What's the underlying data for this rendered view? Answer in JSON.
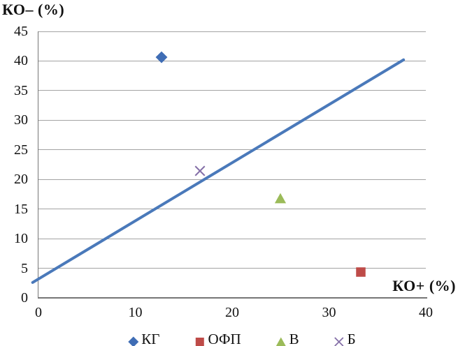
{
  "chart_data": {
    "type": "scatter",
    "title": "",
    "ylabel": "КО– (%)",
    "xlabel": "КО+ (%)",
    "xlim": [
      0,
      40
    ],
    "ylim": [
      0,
      45
    ],
    "xticks": [
      0,
      10,
      20,
      30,
      40
    ],
    "yticks": [
      0,
      5,
      10,
      15,
      20,
      25,
      30,
      35,
      40,
      45
    ],
    "grid": "horizontal-only",
    "legend_position": "bottom-center",
    "series": [
      {
        "id": "kg",
        "name": "КГ",
        "marker": "diamond",
        "color": "#3f6db5",
        "points": [
          [
            12.7,
            40.7
          ]
        ]
      },
      {
        "id": "ofp",
        "name": "ОФП",
        "marker": "square",
        "color": "#be4b48",
        "points": [
          [
            33.3,
            4.3
          ]
        ]
      },
      {
        "id": "v",
        "name": "В",
        "marker": "triangle",
        "color": "#9bbb59",
        "points": [
          [
            25.0,
            16.8
          ]
        ]
      },
      {
        "id": "b",
        "name": "Б",
        "marker": "x",
        "color": "#8570a8",
        "points": [
          [
            16.7,
            21.4
          ]
        ]
      }
    ],
    "trendline": {
      "x1": -0.6,
      "y1": 2.6,
      "x2": 37.7,
      "y2": 40.2,
      "color": "#4a79ba"
    }
  },
  "colors": {
    "axis": "#767676",
    "gridline": "#a3a3a3",
    "text": "#111111",
    "background": "#ffffff"
  }
}
